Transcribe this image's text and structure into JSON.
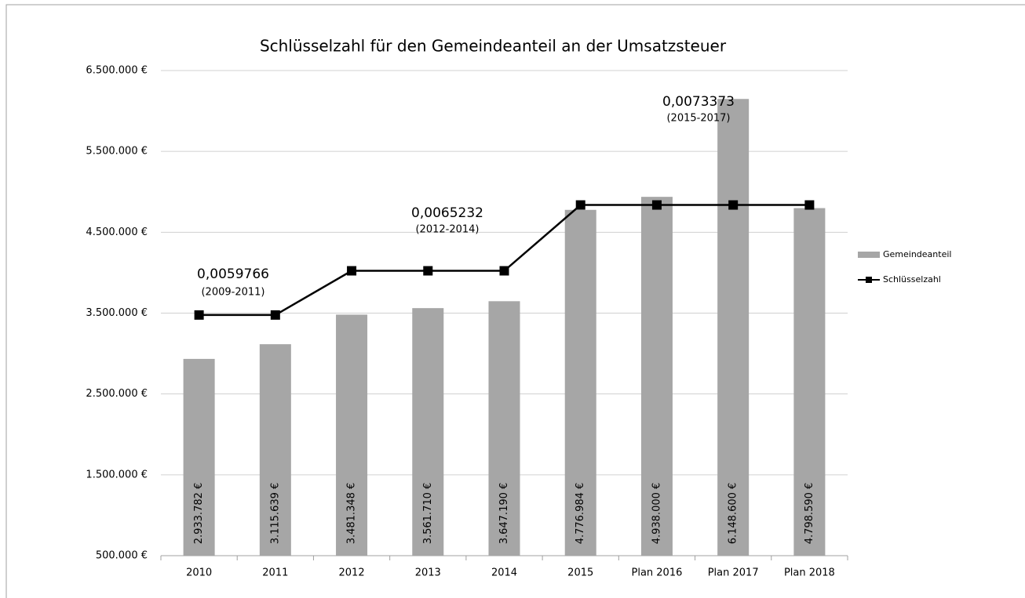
{
  "chart_data": {
    "type": "bar",
    "title": "Schlüsselzahl für den Gemeindeanteil an der Umsatzsteuer",
    "categories": [
      "2010",
      "2011",
      "2012",
      "2013",
      "2014",
      "2015",
      "Plan 2016",
      "Plan 2017",
      "Plan 2018"
    ],
    "series": [
      {
        "name": "Gemeindeanteil",
        "type": "bar",
        "color": "#a6a6a6",
        "values": [
          2933782,
          3115639,
          3481348,
          3561710,
          3647190,
          4776984,
          4938000,
          6148600,
          4798590
        ],
        "value_labels": [
          "2.933.782 €",
          "3.115.639 €",
          "3.481.348 €",
          "3.561.710 €",
          "3.647.190 €",
          "4.776.984 €",
          "4.938.000 €",
          "6.148.600 €",
          "4.798.590 €"
        ]
      },
      {
        "name": "Schlüsselzahl",
        "type": "line",
        "color": "#000000",
        "axis": "y2",
        "values": [
          0.0059766,
          0.0059766,
          0.0065232,
          0.0065232,
          0.0065232,
          0.0073373,
          0.0073373,
          0.0073373,
          0.0073373
        ]
      }
    ],
    "ylim": [
      500000,
      6500000
    ],
    "yticks": [
      {
        "value": 500000,
        "label": "500.000 €"
      },
      {
        "value": 1500000,
        "label": "1.500.000 €"
      },
      {
        "value": 2500000,
        "label": "2.500.000 €"
      },
      {
        "value": 3500000,
        "label": "3.500.000 €"
      },
      {
        "value": 4500000,
        "label": "4.500.000 €"
      },
      {
        "value": 5500000,
        "label": "5.500.000 €"
      },
      {
        "value": 6500000,
        "label": "6.500.000 €"
      }
    ],
    "y2lim": [
      0.003,
      0.009
    ],
    "grid": true,
    "legend": "right",
    "annotations": [
      {
        "text": "0,0059766",
        "period": "(2009-2011)"
      },
      {
        "text": "0,0065232",
        "period": "(2012-2014)"
      },
      {
        "text": "0,0073373",
        "period": "(2015-2017)"
      }
    ]
  }
}
